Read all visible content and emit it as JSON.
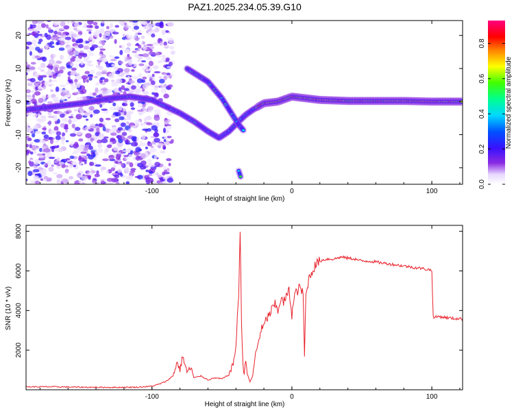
{
  "title": "PAZ1.2025.234.05.39.G10",
  "chart_data": [
    {
      "type": "heatmap",
      "xlabel": "Height of straight line (km)",
      "ylabel": "Frequency (Hz)",
      "xlim": [
        -190,
        122
      ],
      "ylim": [
        -25,
        24.5
      ],
      "xticks": [
        "-100",
        "0",
        "100"
      ],
      "xtick_values": [
        -100,
        0,
        100
      ],
      "yticks": [
        "-20",
        "-10",
        "0",
        "10",
        "20"
      ],
      "ytick_values": [
        -20,
        -10,
        0,
        10,
        20
      ],
      "colorbar": {
        "label": "Normalized spectral amplitude",
        "range": [
          0,
          0.93
        ],
        "ticks": [
          "0.0",
          "0.2",
          "0.4",
          "0.6",
          "0.8"
        ],
        "tick_values": [
          0,
          0.2,
          0.4,
          0.6,
          0.8
        ],
        "colormap": "rainbow (white-violet-blue-cyan-green-yellow-red-magenta)"
      },
      "traces": [
        {
          "segment": "main-carrier",
          "points": [
            [
              -190,
              -2.5
            ],
            [
              -170,
              -1.5
            ],
            [
              -150,
              -0.5
            ],
            [
              -130,
              1
            ],
            [
              -115,
              1.5
            ],
            [
              -100,
              0.5
            ],
            [
              -90,
              -1.5
            ],
            [
              -80,
              -3.5
            ],
            [
              -70,
              -6
            ],
            [
              -60,
              -9
            ],
            [
              -52,
              -11
            ],
            [
              -45,
              -9
            ],
            [
              -38,
              -6
            ],
            [
              -33,
              -4
            ],
            [
              -28,
              -2.5
            ],
            [
              -20,
              -0.5
            ],
            [
              -10,
              0
            ],
            [
              0,
              1.5
            ],
            [
              10,
              1
            ],
            [
              20,
              0.5
            ],
            [
              40,
              0.2
            ],
            [
              60,
              0.2
            ],
            [
              80,
              0.2
            ],
            [
              100,
              0
            ],
            [
              122,
              0
            ]
          ]
        },
        {
          "segment": "upper-branch",
          "points": [
            [
              -75,
              10
            ],
            [
              -60,
              6
            ],
            [
              -50,
              1
            ],
            [
              -44,
              -3
            ],
            [
              -38,
              -7
            ],
            [
              -34,
              -9
            ]
          ]
        },
        {
          "segment": "lower-blip",
          "points": [
            [
              -38,
              -21
            ],
            [
              -36,
              -23.5
            ]
          ]
        }
      ]
    },
    {
      "type": "line",
      "xlabel": "Height of straight line (km)",
      "ylabel": "SNR (10 * v/v)",
      "xlim": [
        -190,
        122
      ],
      "ylim": [
        0,
        8300
      ],
      "xticks": [
        "-100",
        "0",
        "100"
      ],
      "xtick_values": [
        -100,
        0,
        100
      ],
      "yticks": [
        "2000",
        "4000",
        "6000",
        "8000"
      ],
      "ytick_values": [
        2000,
        4000,
        6000,
        8000
      ],
      "color": "#e8202a",
      "series": [
        {
          "x": [
            -190,
            -170,
            -150,
            -130,
            -110,
            -100,
            -95,
            -90,
            -85,
            -82,
            -80,
            -78,
            -75,
            -72,
            -70,
            -65,
            -60,
            -55,
            -50,
            -45,
            -42,
            -40,
            -38,
            -37,
            -36,
            -35,
            -34,
            -33,
            -32,
            -31,
            -30,
            -28,
            -26,
            -24,
            -22,
            -20,
            -18,
            -16,
            -14,
            -12,
            -10,
            -8,
            -6,
            -4,
            -2,
            0,
            2,
            4,
            6,
            8,
            9,
            10,
            12,
            14,
            16,
            18,
            20,
            25,
            30,
            35,
            40,
            45,
            50,
            55,
            60,
            65,
            70,
            75,
            80,
            85,
            90,
            95,
            99,
            100,
            101,
            102,
            105,
            110,
            115,
            122
          ],
          "y": [
            150,
            150,
            130,
            120,
            130,
            180,
            280,
            420,
            700,
            1400,
            1000,
            1700,
            900,
            1100,
            600,
            700,
            500,
            600,
            550,
            750,
            1300,
            2200,
            4800,
            8200,
            3400,
            1200,
            800,
            1600,
            900,
            600,
            400,
            700,
            1800,
            2400,
            3000,
            3200,
            3600,
            3800,
            4100,
            4300,
            4000,
            4600,
            4400,
            4700,
            5000,
            3800,
            4800,
            5000,
            5200,
            4800,
            1700,
            4700,
            5600,
            5900,
            6200,
            6400,
            6500,
            6600,
            6600,
            6700,
            6650,
            6600,
            6500,
            6500,
            6450,
            6400,
            6350,
            6300,
            6250,
            6200,
            6150,
            6100,
            6050,
            6000,
            3700,
            3650,
            3700,
            3650,
            3600,
            3580
          ]
        }
      ]
    }
  ]
}
